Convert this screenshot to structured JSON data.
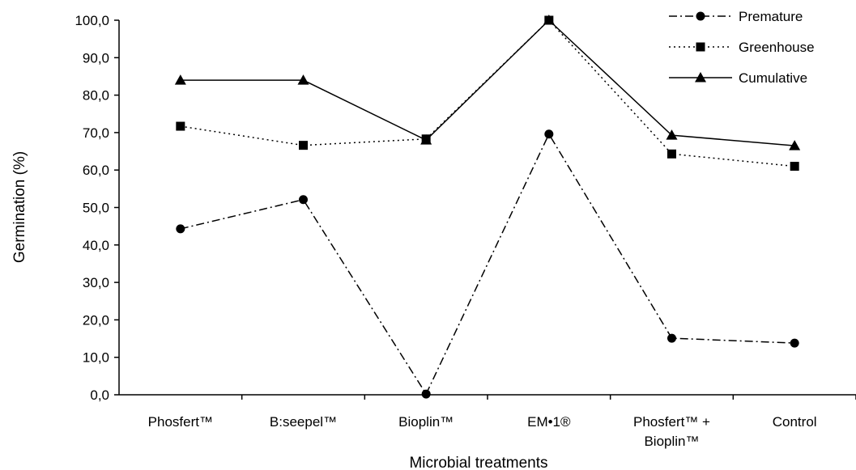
{
  "chart_data": {
    "type": "line",
    "title": "",
    "xlabel": "Microbial treatments",
    "ylabel": "Germination (%)",
    "ylim": [
      0,
      100
    ],
    "yticks": [
      "0,0",
      "10,0",
      "20,0",
      "30,0",
      "40,0",
      "50,0",
      "60,0",
      "70,0",
      "80,0",
      "90,0",
      "100,0"
    ],
    "categories": [
      [
        "Phosfert™"
      ],
      [
        "B:seepel™"
      ],
      [
        "Bioplin™"
      ],
      [
        "EM•1®"
      ],
      [
        "Phosfert™ +",
        "Bioplin™"
      ],
      [
        "Control"
      ]
    ],
    "series": [
      {
        "name": "Premature",
        "values": [
          44.3,
          52.1,
          0.2,
          69.6,
          15.1,
          13.8
        ],
        "marker": "circle",
        "dash": "dashdot"
      },
      {
        "name": "Greenhouse",
        "values": [
          71.7,
          66.6,
          68.3,
          100.0,
          64.3,
          61.0
        ],
        "marker": "square",
        "dash": "dotted"
      },
      {
        "name": "Cumulative",
        "values": [
          84.0,
          84.0,
          68.0,
          100.0,
          69.3,
          66.5
        ],
        "marker": "triangle",
        "dash": "solid"
      }
    ],
    "grid": false,
    "legend_position": "top-right"
  }
}
